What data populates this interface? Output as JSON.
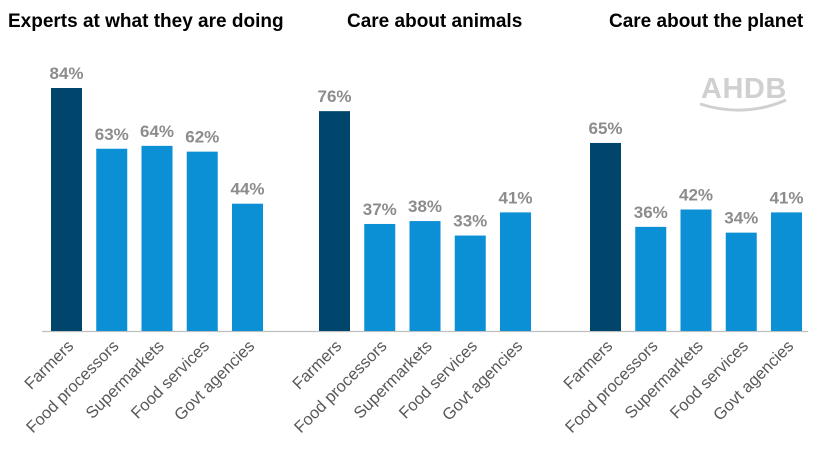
{
  "logo": {
    "text": "AHDB"
  },
  "colors": {
    "highlight": "#00456b",
    "bar": "#0b8fd5",
    "axis": "#bfbfbf",
    "value_label": "#8c8c8c",
    "category_label": "#595959"
  },
  "chart_data": [
    {
      "type": "bar",
      "title": "Experts at what they are doing",
      "categories": [
        "Farmers",
        "Food processors",
        "Supermarkets",
        "Food services",
        "Govt agencies"
      ],
      "values": [
        84,
        63,
        64,
        62,
        44
      ],
      "labels": [
        "84%",
        "63%",
        "64%",
        "62%",
        "44%"
      ],
      "unit": "%",
      "ylim": [
        0,
        100
      ],
      "grid": false
    },
    {
      "type": "bar",
      "title": "Care about animals",
      "categories": [
        "Farmers",
        "Food processors",
        "Supermarkets",
        "Food services",
        "Govt agencies"
      ],
      "values": [
        76,
        37,
        38,
        33,
        41
      ],
      "labels": [
        "76%",
        "37%",
        "38%",
        "33%",
        "41%"
      ],
      "unit": "%",
      "ylim": [
        0,
        100
      ],
      "grid": false
    },
    {
      "type": "bar",
      "title": "Care about the planet",
      "categories": [
        "Farmers",
        "Food processors",
        "Supermarkets",
        "Food services",
        "Govt agencies"
      ],
      "values": [
        65,
        36,
        42,
        34,
        41
      ],
      "labels": [
        "65%",
        "36%",
        "42%",
        "34%",
        "41%"
      ],
      "unit": "%",
      "ylim": [
        0,
        100
      ],
      "grid": false
    }
  ]
}
